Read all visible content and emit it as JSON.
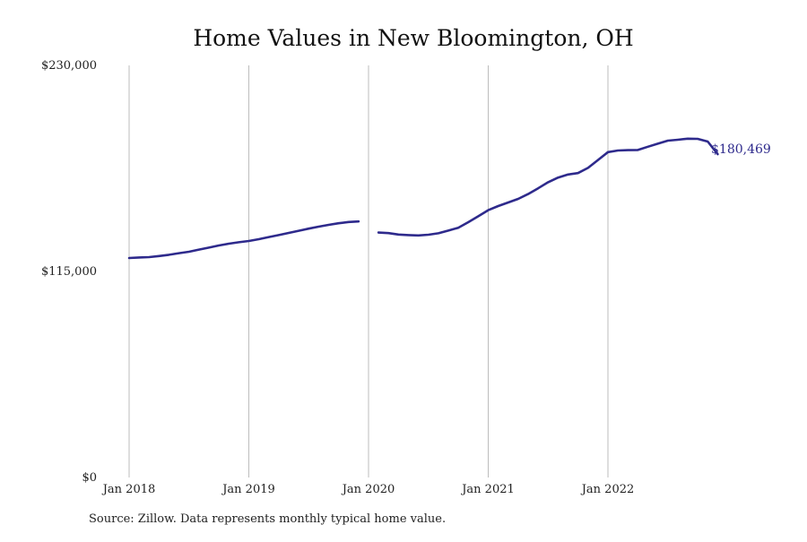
{
  "chart_data": {
    "type": "line",
    "title": "Home Values in New Bloomington, OH",
    "xlabel": "",
    "ylabel": "",
    "x_ticks": [
      "Jan 2018",
      "Jan 2019",
      "Jan 2020",
      "Jan 2021",
      "Jan 2022"
    ],
    "y_ticks": [
      "$0",
      "$115,000",
      "$230,000"
    ],
    "ylim": [
      0,
      230000
    ],
    "xlim": [
      "2018-01",
      "2022-12"
    ],
    "grid": "vertical",
    "legend": "none",
    "color": "#2e2a8c",
    "end_label": "$180,469",
    "series": [
      {
        "segments": [
          {
            "x": [
              "2018-01",
              "2018-02",
              "2018-03",
              "2018-04",
              "2018-05",
              "2018-06",
              "2018-07",
              "2018-08",
              "2018-09",
              "2018-10",
              "2018-11",
              "2018-12",
              "2019-01",
              "2019-02",
              "2019-03",
              "2019-04",
              "2019-05",
              "2019-06",
              "2019-07",
              "2019-08",
              "2019-09",
              "2019-10",
              "2019-11",
              "2019-12"
            ],
            "y": [
              122500,
              122800,
              123000,
              123600,
              124300,
              125200,
              126000,
              127200,
              128300,
              129500,
              130500,
              131300,
              132000,
              133000,
              134200,
              135300,
              136500,
              137700,
              138900,
              140000,
              141000,
              141900,
              142600,
              142900
            ]
          },
          {
            "x": [
              "2020-02",
              "2020-03",
              "2020-04",
              "2020-05",
              "2020-06",
              "2020-07",
              "2020-08",
              "2020-09",
              "2020-10",
              "2020-11",
              "2020-12",
              "2021-01",
              "2021-02",
              "2021-03",
              "2021-04",
              "2021-05",
              "2021-06",
              "2021-07",
              "2021-08",
              "2021-09",
              "2021-10",
              "2021-11",
              "2021-12",
              "2022-01",
              "2022-02",
              "2022-03",
              "2022-04",
              "2022-05",
              "2022-06",
              "2022-07",
              "2022-08",
              "2022-09",
              "2022-10",
              "2022-11",
              "2022-12"
            ],
            "y": [
              136700,
              136400,
              135600,
              135300,
              135100,
              135500,
              136300,
              137800,
              139400,
              142500,
              145800,
              149200,
              151500,
              153500,
              155500,
              158200,
              161400,
              164800,
              167400,
              169100,
              169900,
              172800,
              177200,
              181600,
              182500,
              182700,
              182800,
              184600,
              186300,
              188000,
              188500,
              189100,
              189000,
              187500,
              180469
            ]
          }
        ]
      }
    ]
  },
  "footer": {
    "source": "Source: Zillow. Data represents monthly typical home value."
  }
}
